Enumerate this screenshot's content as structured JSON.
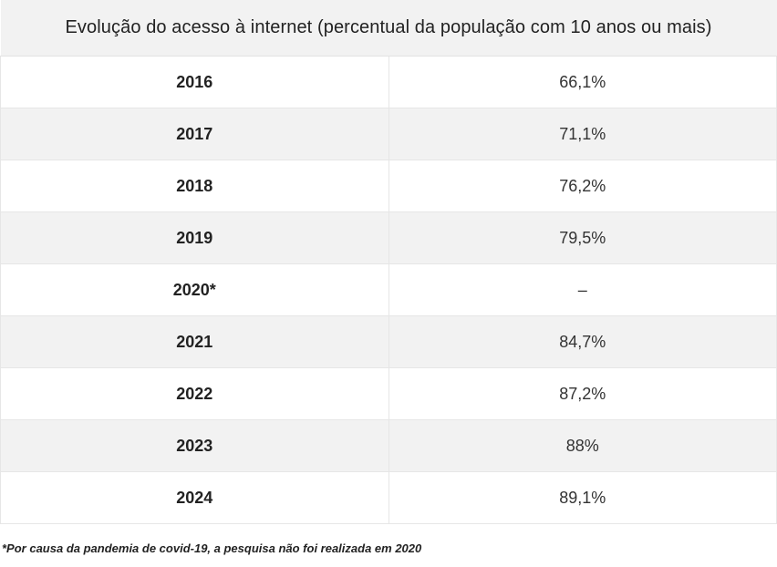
{
  "table": {
    "caption": "Evolução do acesso à internet (percentual da população com 10 anos ou mais)",
    "rows": [
      {
        "year": "2016",
        "value": "66,1%"
      },
      {
        "year": "2017",
        "value": "71,1%"
      },
      {
        "year": "2018",
        "value": "76,2%"
      },
      {
        "year": "2019",
        "value": "79,5%"
      },
      {
        "year": "2020*",
        "value": "–"
      },
      {
        "year": "2021",
        "value": "84,7%"
      },
      {
        "year": "2022",
        "value": "87,2%"
      },
      {
        "year": "2023",
        "value": "88%"
      },
      {
        "year": "2024",
        "value": "89,1%"
      }
    ]
  },
  "footnote": "*Por causa da pandemia de covid-19, a pesquisa não foi realizada em 2020",
  "colors": {
    "header_bg": "#f2f2f2",
    "shaded_row_bg": "#f2f2f2",
    "border": "#e6e6e6"
  }
}
